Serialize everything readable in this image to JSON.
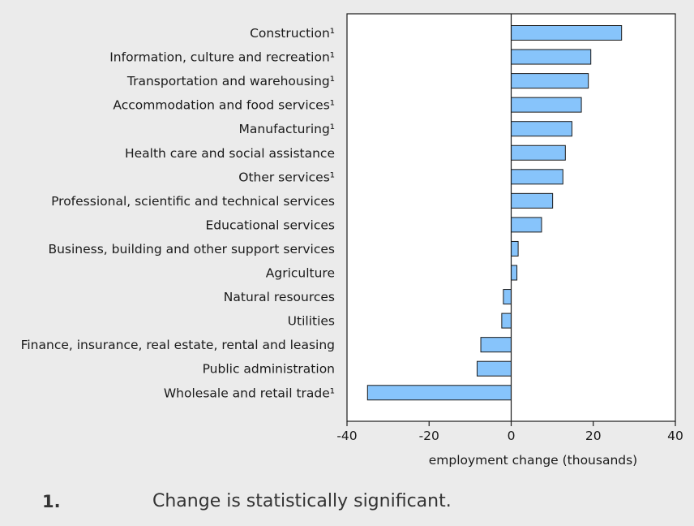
{
  "chart_data": {
    "type": "bar",
    "orientation": "horizontal",
    "categories": [
      "Construction¹",
      "Information, culture and recreation¹",
      "Transportation and warehousing¹",
      "Accommodation and food services¹",
      "Manufacturing¹",
      "Health care and social assistance",
      "Other services¹",
      "Professional, scientific and technical services",
      "Educational services",
      "Business, building and other support services",
      "Agriculture",
      "Natural resources",
      "Utilities",
      "Finance, insurance, real estate, rental and leasing",
      "Public administration",
      "Wholesale and retail trade¹"
    ],
    "values": [
      26.9,
      19.4,
      18.8,
      17.1,
      14.8,
      13.2,
      12.6,
      10.1,
      7.4,
      1.7,
      1.4,
      -1.9,
      -2.3,
      -7.4,
      -8.3,
      -35.0
    ],
    "xlabel": "employment change (thousands)",
    "ylabel": "",
    "xlim": [
      -40,
      40
    ],
    "xticks": [
      -40,
      -20,
      0,
      20,
      40
    ],
    "grid": false,
    "colors": {
      "bar_fill": "#87c4fb",
      "bar_stroke": "#1a1a1a",
      "background": "#ebebeb",
      "plot_background": "#ffffff"
    }
  },
  "footnote": {
    "marker": "1.",
    "text": "Change is statistically significant."
  }
}
